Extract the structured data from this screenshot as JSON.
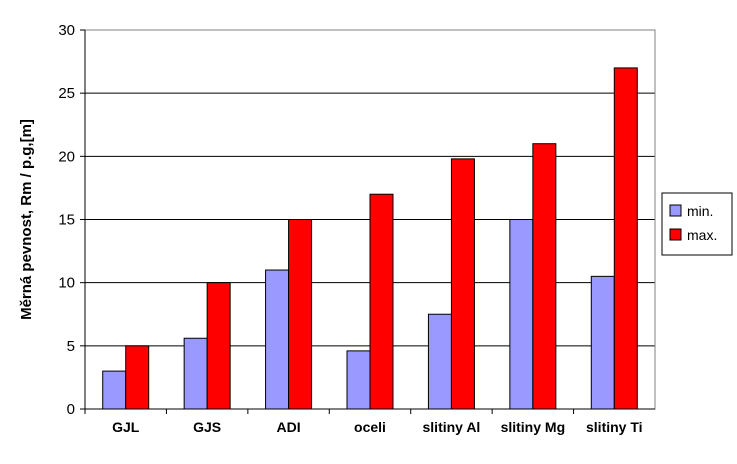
{
  "chart_data": {
    "type": "bar",
    "categories": [
      "GJL",
      "GJS",
      "ADI",
      "oceli",
      "slitiny Al",
      "slitiny Mg",
      "slitiny Ti"
    ],
    "series": [
      {
        "name": "min.",
        "values": [
          3,
          5.6,
          11,
          4.6,
          7.5,
          15,
          10.5
        ],
        "color": "#9999ff"
      },
      {
        "name": "max.",
        "values": [
          5,
          10,
          15,
          17,
          19.8,
          21,
          27
        ],
        "color": "#ff0000"
      }
    ],
    "ylabel": "Měrná pevnost, Rm / p.g,[m]",
    "xlabel": "",
    "ylim": [
      0,
      30
    ],
    "yticks": [
      0,
      5,
      10,
      15,
      20,
      25,
      30
    ],
    "grid": true,
    "legend_position": "right",
    "plot_background": "#ffffff",
    "gridline_color": "#000000"
  }
}
